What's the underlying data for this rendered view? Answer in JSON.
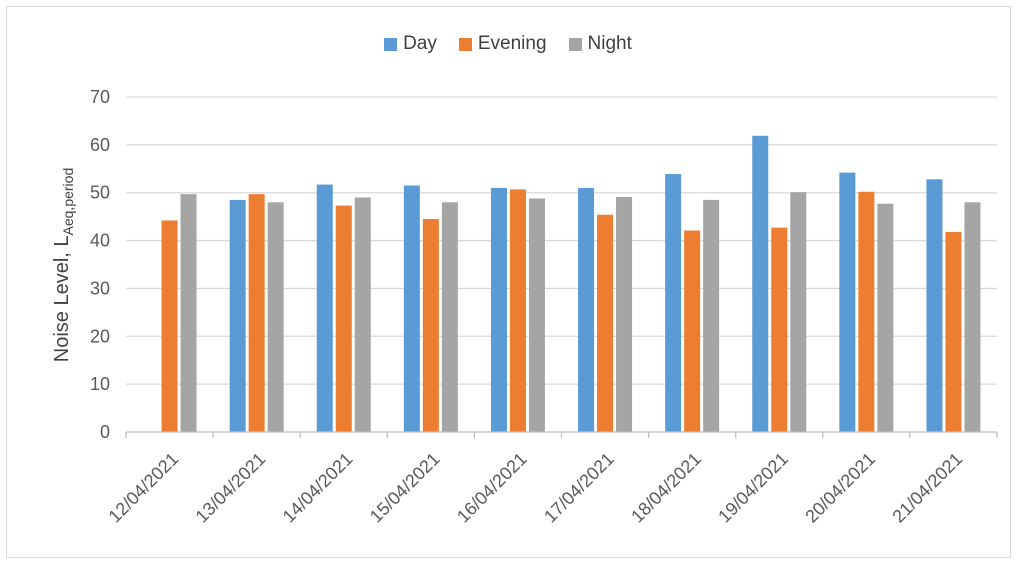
{
  "colors": {
    "Day": "#5b9bd5",
    "Evening": "#ed7d31",
    "Night": "#a5a5a5",
    "grid": "#d9d9d9",
    "axis": "#bfbfbf"
  },
  "legend": {
    "day": "Day",
    "evening": "Evening",
    "night": "Night"
  },
  "chart_data": {
    "type": "bar",
    "title": "",
    "xlabel": "",
    "ylabel": {
      "main": "Noise Level, L",
      "subscript": "Aeq,period"
    },
    "ylim": [
      0,
      70
    ],
    "yticks": [
      0,
      10,
      20,
      30,
      40,
      50,
      60,
      70
    ],
    "grid": true,
    "legend_position": "top",
    "categories": [
      "12/04/2021",
      "13/04/2021",
      "14/04/2021",
      "15/04/2021",
      "16/04/2021",
      "17/04/2021",
      "18/04/2021",
      "19/04/2021",
      "20/04/2021",
      "21/04/2021"
    ],
    "series": [
      {
        "name": "Day",
        "values": [
          null,
          48.5,
          51.7,
          51.5,
          51.0,
          51.0,
          53.9,
          61.9,
          54.2,
          52.8
        ]
      },
      {
        "name": "Evening",
        "values": [
          44.2,
          49.7,
          47.3,
          44.5,
          50.7,
          45.4,
          42.1,
          42.7,
          50.2,
          41.8
        ]
      },
      {
        "name": "Night",
        "values": [
          49.7,
          48.0,
          49.0,
          48.0,
          48.8,
          49.1,
          48.5,
          50.1,
          47.7,
          48.0
        ]
      }
    ]
  }
}
